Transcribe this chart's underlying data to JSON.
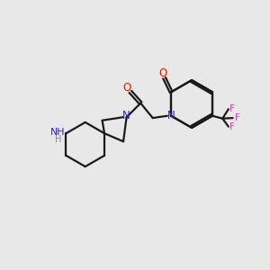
{
  "background_color": "#e8e8e8",
  "bond_color": "#1a1a1a",
  "nitrogen_color": "#2020dd",
  "oxygen_color": "#cc2200",
  "fluorine_color": "#cc44aa",
  "figsize": [
    3.0,
    3.0
  ],
  "dpi": 100,
  "xlim": [
    0,
    10
  ],
  "ylim": [
    0,
    10
  ],
  "lw": 1.6
}
